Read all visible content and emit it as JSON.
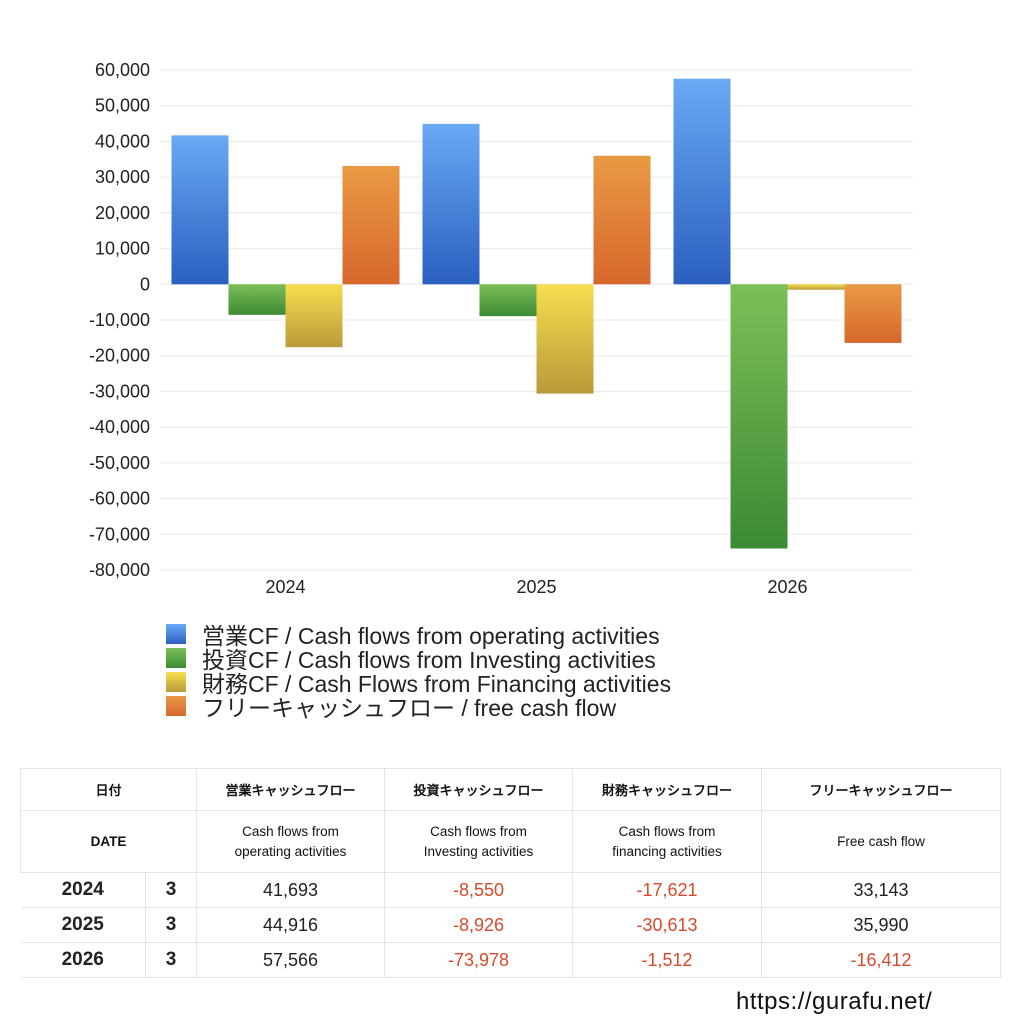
{
  "chart_data": {
    "type": "bar",
    "categories": [
      "2024",
      "2025",
      "2026"
    ],
    "ylim": [
      -80000,
      60000
    ],
    "yticks": [
      60000,
      50000,
      40000,
      30000,
      20000,
      10000,
      0,
      -10000,
      -20000,
      -30000,
      -40000,
      -50000,
      -60000,
      -70000,
      -80000
    ],
    "ytick_labels": [
      "60,000",
      "50,000",
      "40,000",
      "30,000",
      "20,000",
      "10,000",
      "0",
      "-10,000",
      "-20,000",
      "-30,000",
      "-40,000",
      "-50,000",
      "-60,000",
      "-70,000",
      "-80,000"
    ],
    "grid": true,
    "legend_position": "bottom-left",
    "series": [
      {
        "name": "営業CF / Cash flows from operating activities",
        "values": [
          41693,
          44916,
          57566
        ],
        "color_top": "#6aa9f4",
        "color_bottom": "#2a5fbf"
      },
      {
        "name": "投資CF / Cash flows from Investing activities",
        "values": [
          -8550,
          -8926,
          -73978
        ],
        "color_top": "#7cbf57",
        "color_bottom": "#3c8a35"
      },
      {
        "name": "財務CF / Cash Flows from Financing activities",
        "values": [
          -17621,
          -30613,
          -1512
        ],
        "color_top": "#f7de4f",
        "color_bottom": "#b89a3a"
      },
      {
        "name": "フリーキャッシュフロー / free cash flow",
        "values": [
          33143,
          35990,
          -16412
        ],
        "color_top": "#e99a44",
        "color_bottom": "#d7672c"
      }
    ]
  },
  "table": {
    "headers_jp": [
      "日付",
      "営業キャッシュフロー",
      "投資キャッシュフロー",
      "財務キャッシュフロー",
      "フリーキャッシュフロー"
    ],
    "headers_en": [
      "DATE",
      "Cash flows from\noperating activities",
      "Cash flows from\nInvesting activities",
      "Cash flows from\nfinancing activities",
      "Free cash flow"
    ],
    "rows": [
      {
        "year": "2024",
        "month": "3",
        "values": [
          "41,693",
          "-8,550",
          "-17,621",
          "33,143"
        ]
      },
      {
        "year": "2025",
        "month": "3",
        "values": [
          "44,916",
          "-8,926",
          "-30,613",
          "35,990"
        ]
      },
      {
        "year": "2026",
        "month": "3",
        "values": [
          "57,566",
          "-73,978",
          "-1,512",
          "-16,412"
        ]
      }
    ]
  },
  "footer": {
    "url": "https://gurafu.net/"
  }
}
